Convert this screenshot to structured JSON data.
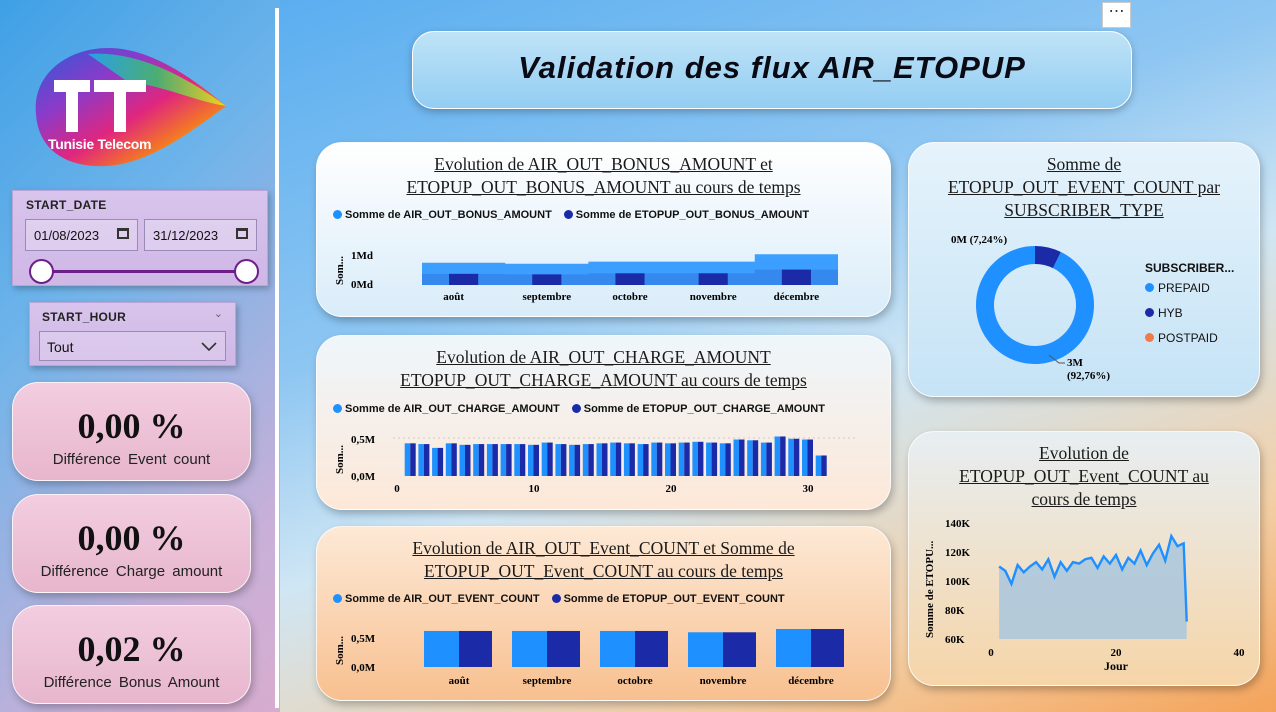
{
  "title": "Validation des flux AIR_ETOPUP",
  "logo": {
    "text": "Tunisie Telecom"
  },
  "filters": {
    "start_date": {
      "label": "START_DATE",
      "from": "01/08/2023",
      "to": "31/12/2023"
    },
    "start_hour": {
      "label": "START_HOUR",
      "value": "Tout"
    }
  },
  "kpis": [
    {
      "value": "0,00 %",
      "label": "Différence Event count"
    },
    {
      "value": "0,00 %",
      "label": "Différence Charge amount"
    },
    {
      "value": "0,02 %",
      "label": "Différence Bonus Amount"
    }
  ],
  "colors": {
    "light": "#1e90ff",
    "dark": "#1b2ba8",
    "orange": "#f07a4a"
  },
  "charts": {
    "bonus": {
      "title_line1": "Evolution de AIR_OUT_BONUS_AMOUNT et",
      "title_line2": "ETOPUP_OUT_BONUS_AMOUNT au cours de temps",
      "legend": [
        "Somme de AIR_OUT_BONUS_AMOUNT",
        "Somme de ETOPUP_OUT_BONUS_AMOUNT"
      ],
      "ylabel": "Som...",
      "yticks": [
        "1Md",
        "0Md"
      ]
    },
    "charge": {
      "title_line1": "Evolution de AIR_OUT_CHARGE_AMOUNT",
      "title_line2": "ETOPUP_OUT_CHARGE_AMOUNT au cours de temps",
      "legend": [
        "Somme de AIR_OUT_CHARGE_AMOUNT",
        "Somme de ETOPUP_OUT_CHARGE_AMOUNT"
      ],
      "ylabel": "Som...",
      "yticks": [
        "0,5M",
        "0,0M"
      ],
      "xticks": [
        "0",
        "10",
        "20",
        "30"
      ]
    },
    "event": {
      "title_line1": "Evolution de AIR_OUT_Event_COUNT et Somme de",
      "title_line2": "ETOPUP_OUT_Event_COUNT au cours de temps",
      "legend": [
        "Somme de AIR_OUT_EVENT_COUNT",
        "Somme de ETOPUP_OUT_EVENT_COUNT"
      ],
      "ylabel": "Som...",
      "yticks": [
        "0,5M",
        "0,0M"
      ]
    },
    "donut": {
      "title_line1": "Somme de",
      "title_line2": "ETOPUP_OUT_EVENT_COUNT par",
      "title_line3": "SUBSCRIBER_TYPE",
      "legend_title": "SUBSCRIBER...",
      "label_small": "0M (7,24%)",
      "label_big_1": "3M",
      "label_big_2": "(92,76%)"
    },
    "area": {
      "title_line1": "Evolution de",
      "title_line2": "ETOPUP_OUT_Event_COUNT au",
      "title_line3": "cours de temps",
      "ylabel": "Somme de ETOPU...",
      "xlabel": "Jour",
      "yticks": [
        "140K",
        "120K",
        "100K",
        "80K",
        "60K"
      ],
      "xticks": [
        "0",
        "20",
        "40"
      ]
    }
  },
  "chart_data": [
    {
      "type": "area",
      "title": "Evolution de AIR_OUT_BONUS_AMOUNT et ETOPUP_OUT_BONUS_AMOUNT au cours de temps",
      "categories": [
        "août",
        "septembre",
        "octobre",
        "novembre",
        "décembre"
      ],
      "series": [
        {
          "name": "Somme de AIR_OUT_BONUS_AMOUNT",
          "values": [
            1.05,
            1.0,
            1.1,
            1.1,
            1.45
          ]
        },
        {
          "name": "Somme de ETOPUP_OUT_BONUS_AMOUNT",
          "values": [
            1.05,
            1.0,
            1.1,
            1.1,
            1.45
          ]
        }
      ],
      "ylabel": "Som...",
      "yticks": [
        "0Md",
        "1Md"
      ]
    },
    {
      "type": "bar",
      "title": "Evolution de AIR_OUT_CHARGE_AMOUNT ETOPUP_OUT_CHARGE_AMOUNT au cours de temps",
      "x": [
        1,
        2,
        3,
        4,
        5,
        6,
        7,
        8,
        9,
        10,
        11,
        12,
        13,
        14,
        15,
        16,
        17,
        18,
        19,
        20,
        21,
        22,
        23,
        24,
        25,
        26,
        27,
        28,
        29,
        30,
        31
      ],
      "series": [
        {
          "name": "Somme de AIR_OUT_CHARGE_AMOUNT",
          "values": [
            0.43,
            0.42,
            0.37,
            0.43,
            0.41,
            0.42,
            0.42,
            0.42,
            0.42,
            0.41,
            0.44,
            0.42,
            0.41,
            0.42,
            0.43,
            0.44,
            0.43,
            0.42,
            0.44,
            0.43,
            0.44,
            0.45,
            0.44,
            0.43,
            0.48,
            0.47,
            0.44,
            0.52,
            0.49,
            0.48,
            0.27
          ]
        },
        {
          "name": "Somme de ETOPUP_OUT_CHARGE_AMOUNT",
          "values": [
            0.43,
            0.42,
            0.37,
            0.43,
            0.41,
            0.42,
            0.42,
            0.42,
            0.42,
            0.41,
            0.44,
            0.42,
            0.41,
            0.42,
            0.43,
            0.44,
            0.43,
            0.42,
            0.44,
            0.43,
            0.44,
            0.45,
            0.44,
            0.43,
            0.48,
            0.47,
            0.44,
            0.52,
            0.49,
            0.48,
            0.27
          ]
        }
      ],
      "ylabel": "Som..."
    },
    {
      "type": "bar",
      "title": "Evolution de AIR_OUT_Event_COUNT et Somme de ETOPUP_OUT_Event_COUNT au cours de temps",
      "categories": [
        "août",
        "septembre",
        "octobre",
        "novembre",
        "décembre"
      ],
      "series": [
        {
          "name": "Somme de AIR_OUT_EVENT_COUNT",
          "values": [
            0.55,
            0.55,
            0.55,
            0.53,
            0.58
          ]
        },
        {
          "name": "Somme de ETOPUP_OUT_EVENT_COUNT",
          "values": [
            0.55,
            0.55,
            0.55,
            0.53,
            0.58
          ]
        }
      ],
      "ylabel": "Som..."
    },
    {
      "type": "pie",
      "title": "Somme de ETOPUP_OUT_EVENT_COUNT par SUBSCRIBER_TYPE",
      "categories": [
        "PREPAID",
        "HYB",
        "POSTPAID"
      ],
      "values": [
        92.76,
        7.24,
        0
      ],
      "colors": [
        "#1e90ff",
        "#1b2ba8",
        "#f07a4a"
      ]
    },
    {
      "type": "area",
      "title": "Evolution de ETOPUP_OUT_Event_COUNT au cours de temps",
      "xlabel": "Jour",
      "ylabel": "Somme de ETOPU...",
      "x": [
        1,
        2,
        3,
        4,
        5,
        6,
        7,
        8,
        9,
        10,
        11,
        12,
        13,
        14,
        15,
        16,
        17,
        18,
        19,
        20,
        21,
        22,
        23,
        24,
        25,
        26,
        27,
        28,
        29,
        30,
        31
      ],
      "values": [
        110,
        107,
        98,
        111,
        106,
        110,
        113,
        108,
        115,
        103,
        113,
        107,
        113,
        112,
        115,
        116,
        109,
        117,
        112,
        118,
        108,
        116,
        112,
        121,
        111,
        119,
        125,
        114,
        131,
        124,
        126
      ],
      "ylim": [
        60,
        140
      ]
    }
  ]
}
